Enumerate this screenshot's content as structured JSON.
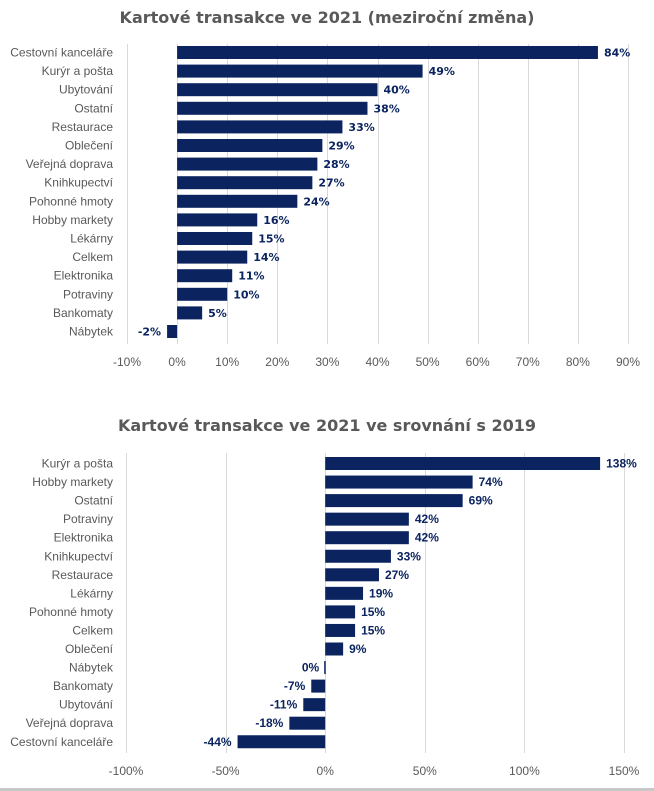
{
  "chart_data": [
    {
      "type": "bar",
      "orientation": "horizontal",
      "title": "Kartové transakce ve 2021 (meziroční změna)",
      "xlabel": "",
      "ylabel": "",
      "categories": [
        "Cestovní kanceláře",
        "Kurýr a pošta",
        "Ubytování",
        "Ostatní",
        "Restaurace",
        "Oblečení",
        "Veřejná doprava",
        "Knihkupectví",
        "Pohonné hmoty",
        "Hobby markety",
        "Lékárny",
        "Celkem",
        "Elektronika",
        "Potraviny",
        "Bankomaty",
        "Nábytek"
      ],
      "values": [
        84,
        49,
        40,
        38,
        33,
        29,
        28,
        27,
        24,
        16,
        15,
        14,
        11,
        10,
        5,
        -2
      ],
      "data_labels": [
        "84%",
        "49%",
        "40%",
        "38%",
        "33%",
        "29%",
        "28%",
        "27%",
        "24%",
        "16%",
        "15%",
        "14%",
        "11%",
        "10%",
        "5%",
        "-2%"
      ],
      "unit": "%",
      "xlim": [
        -10,
        90
      ],
      "xticks": [
        -10,
        0,
        10,
        20,
        30,
        40,
        50,
        60,
        70,
        80,
        90
      ],
      "xtick_labels": [
        "-10%",
        "0%",
        "10%",
        "20%",
        "30%",
        "40%",
        "50%",
        "60%",
        "70%",
        "80%",
        "90%"
      ],
      "grid": true,
      "legend": "none",
      "bar_color": "#0b2460"
    },
    {
      "type": "bar",
      "orientation": "horizontal",
      "title": "Kartové transakce ve 2021 ve srovnání s 2019",
      "xlabel": "",
      "ylabel": "",
      "categories": [
        "Kurýr a pošta",
        "Hobby markety",
        "Ostatní",
        "Potraviny",
        "Elektronika",
        "Knihkupectví",
        "Restaurace",
        "Lékárny",
        "Pohonné hmoty",
        "Celkem",
        "Oblečení",
        "Nábytek",
        "Bankomaty",
        "Ubytování",
        "Veřejná doprava",
        "Cestovní kanceláře"
      ],
      "values": [
        138,
        74,
        69,
        42,
        42,
        33,
        27,
        19,
        15,
        15,
        9,
        0,
        -7,
        -11,
        -18,
        -44
      ],
      "data_labels": [
        "138%",
        "74%",
        "69%",
        "42%",
        "42%",
        "33%",
        "27%",
        "19%",
        "15%",
        "15%",
        "9%",
        "0%",
        "-7%",
        "-11%",
        "-18%",
        "-44%"
      ],
      "unit": "%",
      "xlim": [
        -100,
        150
      ],
      "xticks": [
        -100,
        -50,
        0,
        50,
        100,
        150
      ],
      "xtick_labels": [
        "-100%",
        "-50%",
        "0%",
        "50%",
        "100%",
        "150%"
      ],
      "grid": true,
      "legend": "none",
      "bar_color": "#0b2460"
    }
  ]
}
